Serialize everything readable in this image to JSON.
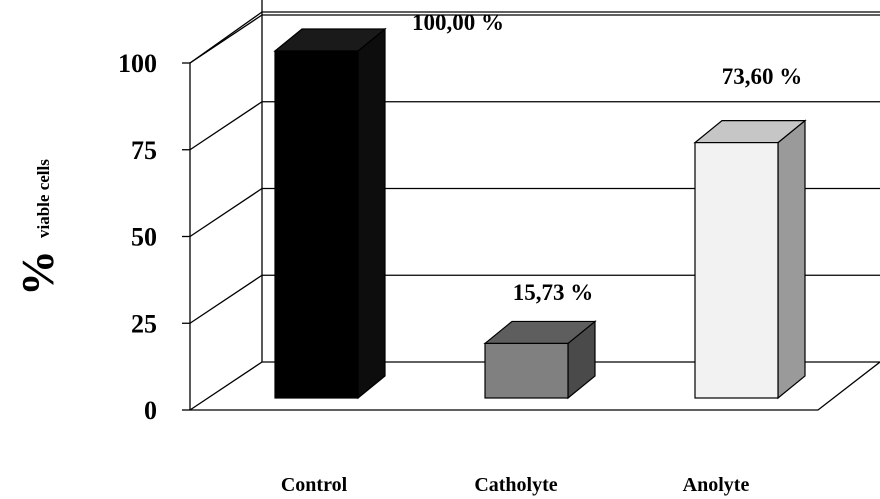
{
  "chart_data": {
    "type": "bar",
    "style": "3d",
    "categories": [
      "Control",
      "Catholyte",
      "Anolyte"
    ],
    "values": [
      100.0,
      15.73,
      73.6
    ],
    "data_labels": [
      "100,00 %",
      "15,73 %",
      "73,60 %"
    ],
    "ylabel": "%",
    "ylabel_sub": "viable cells",
    "yticks": [
      "0",
      "25",
      "50",
      "75",
      "100"
    ],
    "ylim": [
      0,
      100
    ],
    "grid": true,
    "legend": "none",
    "colors": {
      "Control": {
        "front": "#000000",
        "top": "#1a1a1a",
        "side": "#0d0d0d"
      },
      "Catholyte": {
        "front": "#808080",
        "top": "#5e5e5e",
        "side": "#4a4a4a"
      },
      "Anolyte": {
        "front": "#f2f2f2",
        "top": "#c6c6c6",
        "side": "#9a9a9a"
      }
    }
  }
}
